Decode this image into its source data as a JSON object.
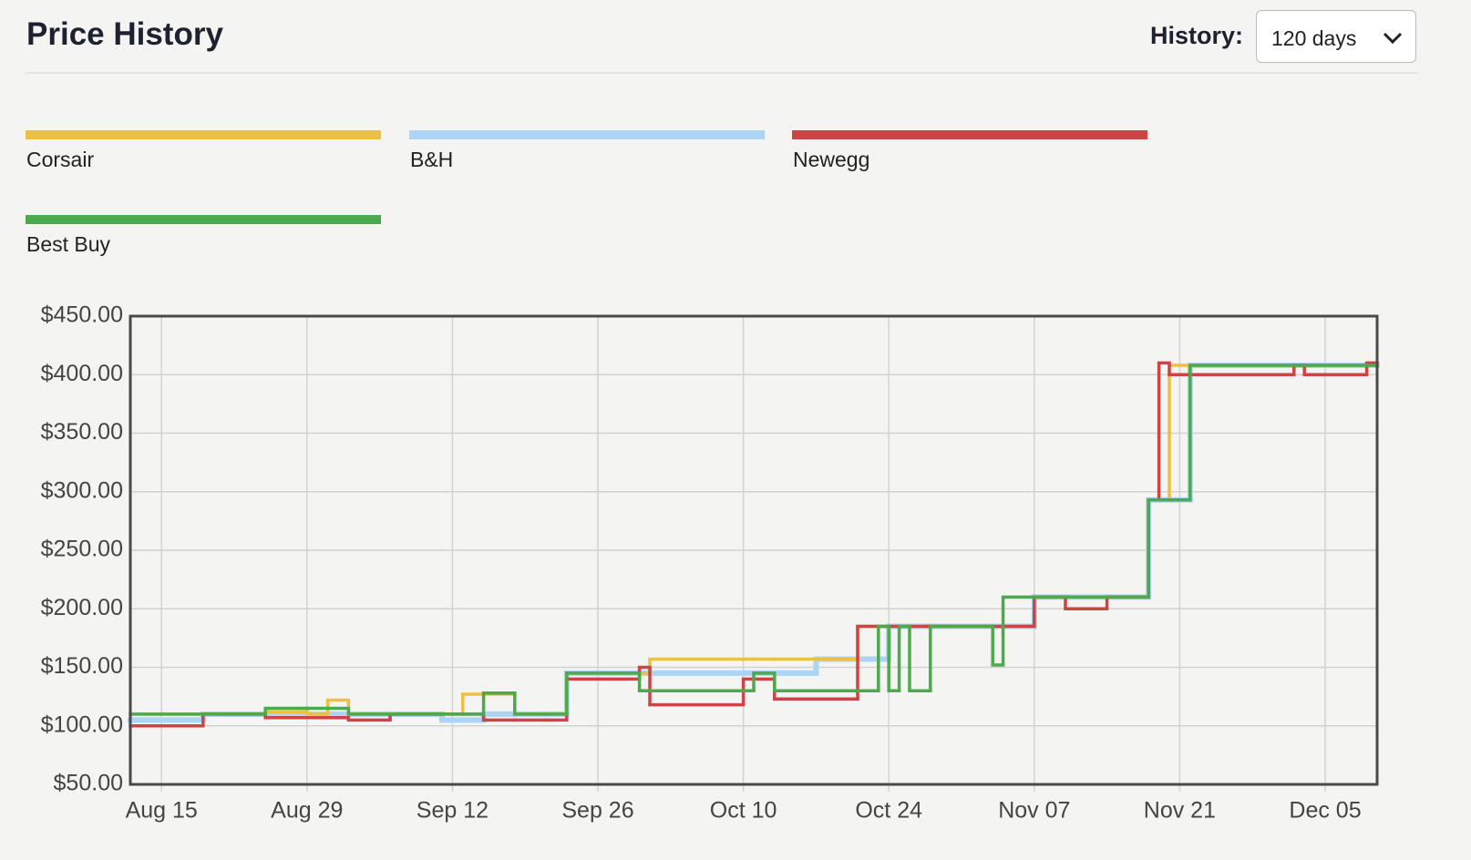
{
  "header": {
    "title": "Price History",
    "history_label": "History:",
    "history_value": "120 days"
  },
  "chart_data": {
    "type": "step-line",
    "x": [
      "Aug 12",
      "Aug 19",
      "Aug 25",
      "Aug 29",
      "Aug 31",
      "Sep 02",
      "Sep 06",
      "Sep 11",
      "Sep 13",
      "Sep 15",
      "Sep 18",
      "Sep 21",
      "Sep 23",
      "Sep 30",
      "Oct 01",
      "Oct 10",
      "Oct 11",
      "Oct 13",
      "Oct 17",
      "Oct 21",
      "Oct 23",
      "Oct 24",
      "Oct 25",
      "Oct 26",
      "Oct 28",
      "Nov 03",
      "Nov 04",
      "Nov 07",
      "Nov 10",
      "Nov 14",
      "Nov 18",
      "Nov 19",
      "Nov 20",
      "Nov 22",
      "Dec 02",
      "Dec 03",
      "Dec 09"
    ],
    "series": [
      {
        "name": "Corsair",
        "color": "#ecc043",
        "values": [
          110,
          110,
          112,
          110,
          122,
          110,
          110,
          110,
          127,
          127,
          110,
          110,
          145,
          145,
          157,
          157,
          157,
          157,
          157,
          185,
          185,
          185,
          185,
          185,
          185,
          185,
          185,
          210,
          210,
          210,
          293,
          293,
          408,
          408,
          408,
          408,
          408
        ]
      },
      {
        "name": "B&H",
        "color": "#acd5f5",
        "values": [
          105,
          110,
          110,
          110,
          110,
          110,
          110,
          105,
          105,
          110,
          110,
          110,
          145,
          145,
          145,
          145,
          145,
          145,
          157,
          157,
          157,
          185,
          185,
          185,
          185,
          185,
          185,
          210,
          210,
          210,
          293,
          293,
          293,
          408,
          408,
          408,
          408
        ]
      },
      {
        "name": "Newegg",
        "color": "#cc4444",
        "values": [
          100,
          110,
          107,
          107,
          107,
          105,
          110,
          110,
          110,
          105,
          105,
          105,
          140,
          150,
          118,
          140,
          140,
          123,
          123,
          185,
          185,
          185,
          185,
          185,
          185,
          185,
          185,
          210,
          200,
          210,
          293,
          410,
          400,
          400,
          408,
          400,
          410
        ]
      },
      {
        "name": "Best Buy",
        "color": "#4ea94e",
        "values": [
          110,
          110,
          115,
          115,
          115,
          110,
          110,
          110,
          110,
          128,
          110,
          110,
          145,
          130,
          130,
          130,
          145,
          130,
          130,
          130,
          185,
          130,
          185,
          130,
          185,
          152,
          210,
          210,
          210,
          210,
          293,
          293,
          293,
          408,
          408,
          408,
          408
        ]
      }
    ],
    "xlim": [
      "Aug 12",
      "Dec 10"
    ],
    "xticks": [
      "Aug 15",
      "Aug 29",
      "Sep 12",
      "Sep 26",
      "Oct 10",
      "Oct 24",
      "Nov 07",
      "Nov 21",
      "Dec 05"
    ],
    "ylim": [
      50,
      450
    ],
    "yticks": [
      {
        "value": 50,
        "label": "$50.00"
      },
      {
        "value": 100,
        "label": "$100.00"
      },
      {
        "value": 150,
        "label": "$150.00"
      },
      {
        "value": 200,
        "label": "$200.00"
      },
      {
        "value": 250,
        "label": "$250.00"
      },
      {
        "value": 300,
        "label": "$300.00"
      },
      {
        "value": 350,
        "label": "$350.00"
      },
      {
        "value": 400,
        "label": "$400.00"
      },
      {
        "value": 450,
        "label": "$450.00"
      }
    ],
    "grid": true
  }
}
